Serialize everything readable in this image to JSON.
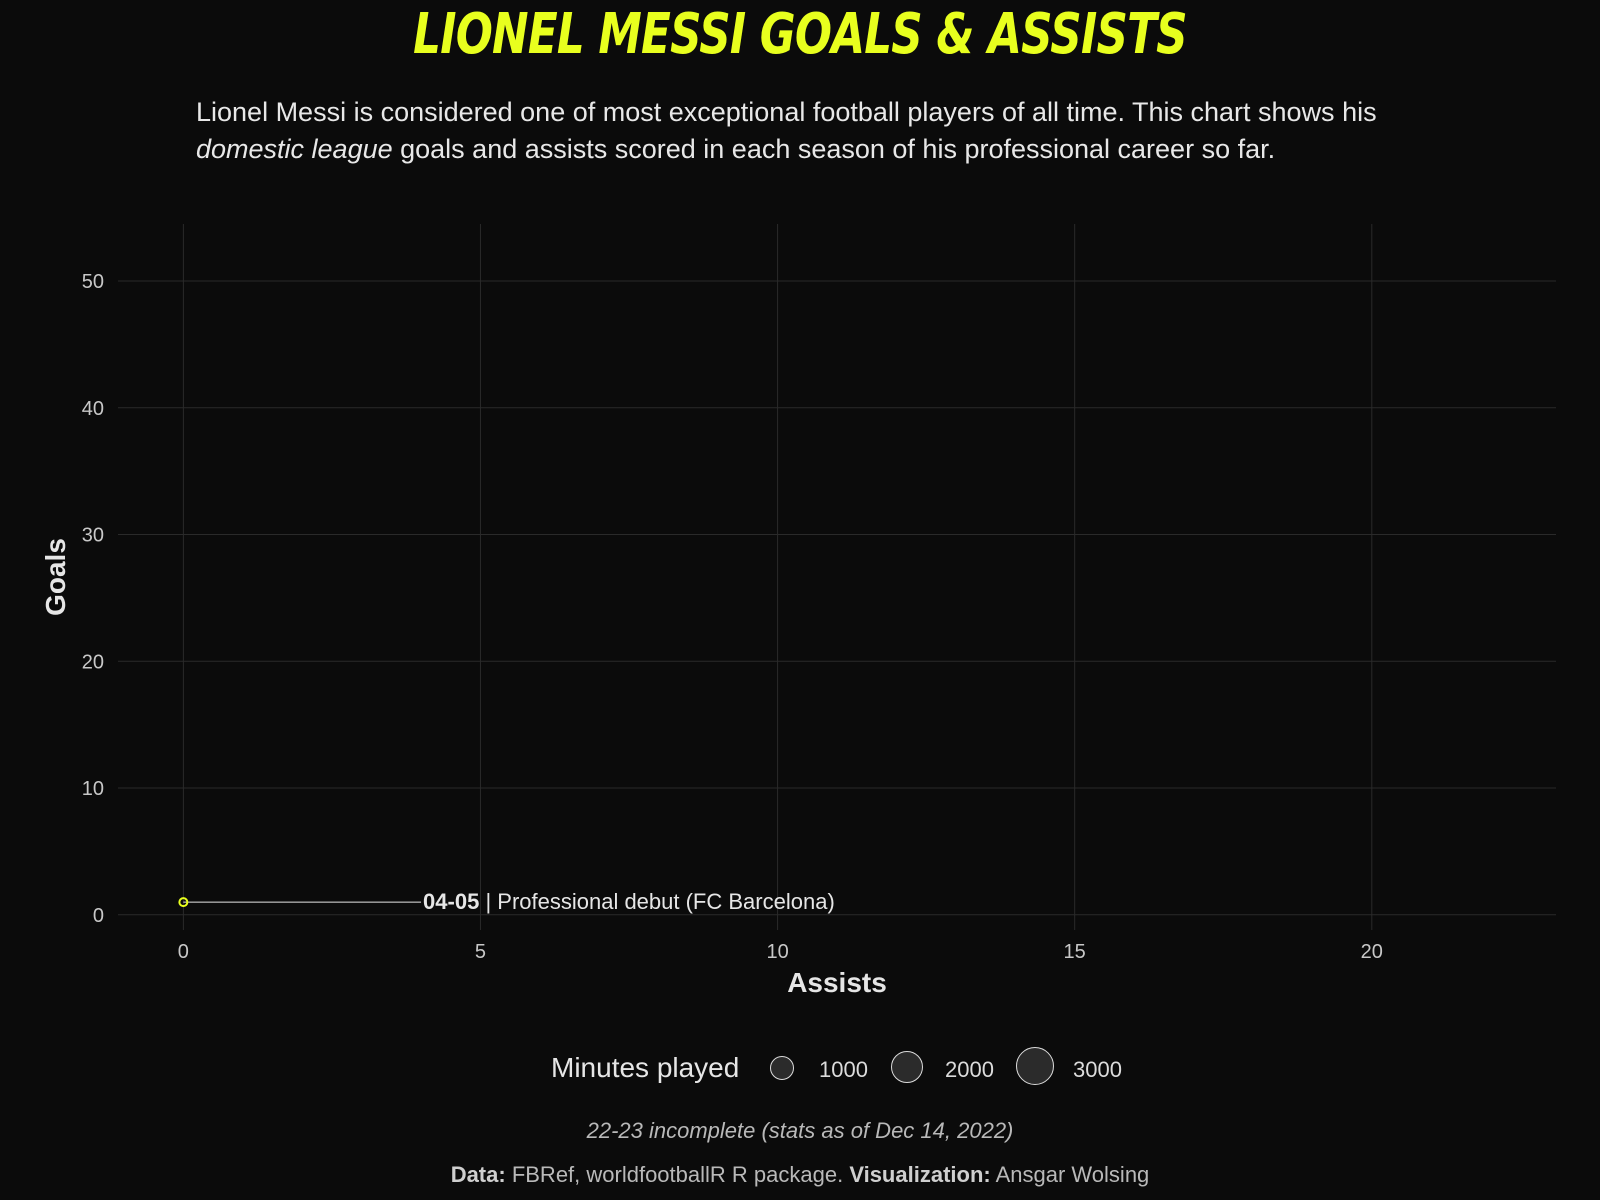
{
  "title": "LIONEL MESSI GOALS & ASSISTS",
  "subtitle": {
    "part1": "Lionel Messi is considered one of most exceptional football players of all time. This chart shows his ",
    "emphasis": "domestic league",
    "part2": " goals and assists scored in each season of his professional career so far."
  },
  "chart_data": {
    "type": "scatter",
    "xlabel": "Assists",
    "ylabel": "Goals",
    "xlim": [
      -1.1,
      23.1
    ],
    "ylim": [
      -1.2,
      54.5
    ],
    "x_ticks": [
      0,
      5,
      10,
      15,
      20
    ],
    "y_ticks": [
      0,
      10,
      20,
      30,
      40,
      50
    ],
    "grid": true,
    "points": [
      {
        "season": "04-05",
        "assists": 0,
        "goals": 1
      }
    ],
    "annotations": [
      {
        "season": "04-05",
        "label_bold": "04-05",
        "label_text": " | Professional debut (FC Barcelona)",
        "x": 4,
        "y": 1
      }
    ],
    "point_color": "#e8ff1e",
    "grid_color": "#2a2a2a",
    "legend": {
      "title": "Minutes played",
      "entries": [
        "1000",
        "2000",
        "3000"
      ],
      "placement": "bottom"
    }
  },
  "caption_note": "22-23 incomplete (stats as of Dec 14, 2022)",
  "credits": {
    "data_label": "Data:",
    "data_text": " FBRef, worldfootballR R package. ",
    "viz_label": "Visualization:",
    "viz_text": " Ansgar Wolsing"
  }
}
